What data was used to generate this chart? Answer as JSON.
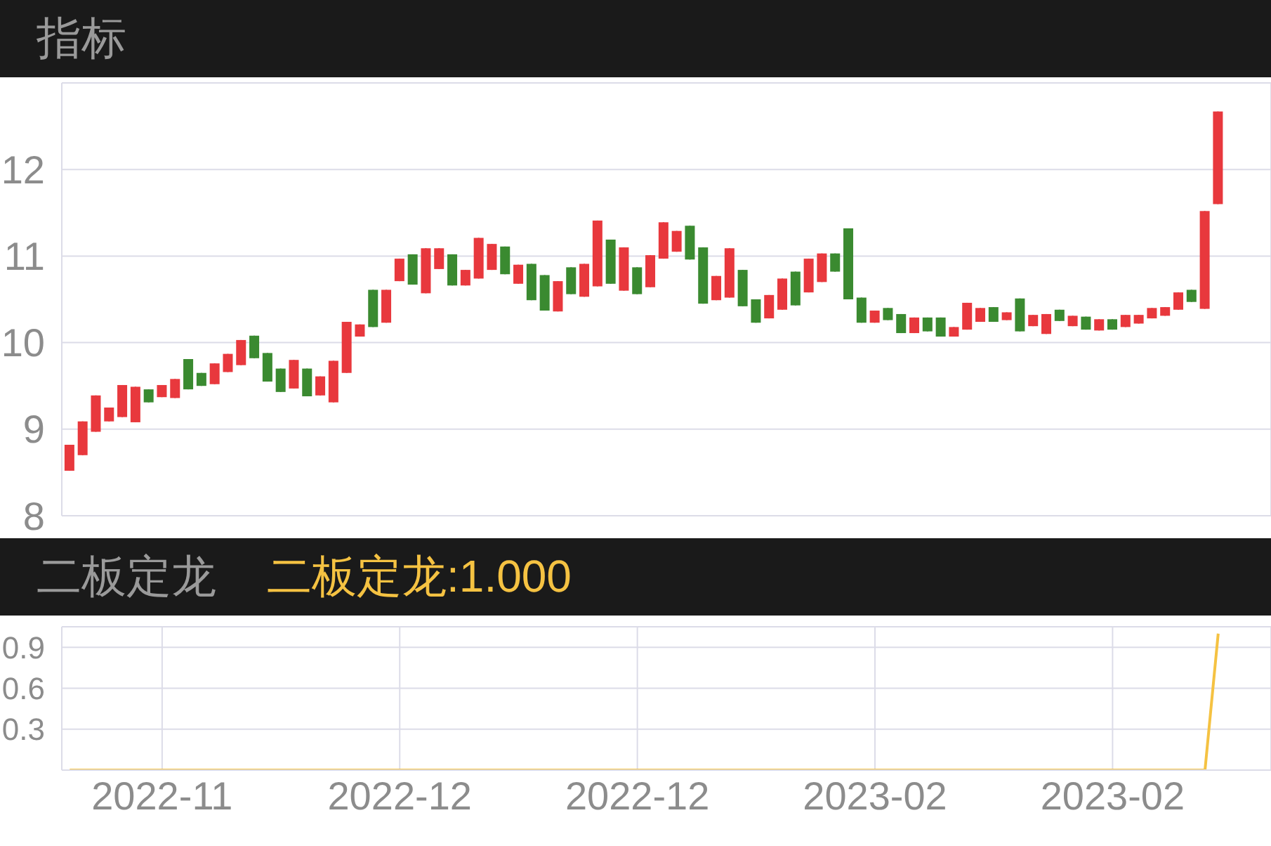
{
  "chart_data": [
    {
      "type": "candlestick",
      "title": "指标",
      "categories": [
        null,
        null,
        null,
        null,
        null,
        null,
        null,
        "2022-11",
        null,
        null,
        null,
        null,
        null,
        null,
        null,
        null,
        null,
        null,
        null,
        null,
        null,
        null,
        null,
        null,
        null,
        "2022-12",
        null,
        null,
        null,
        null,
        null,
        null,
        null,
        null,
        null,
        null,
        null,
        null,
        null,
        null,
        null,
        null,
        null,
        "2022-12",
        null,
        null,
        null,
        null,
        null,
        null,
        null,
        null,
        null,
        null,
        null,
        null,
        null,
        null,
        null,
        null,
        null,
        "2023-02",
        null,
        null,
        null,
        null,
        null,
        null,
        null,
        null,
        null,
        null,
        null,
        null,
        null,
        null,
        null,
        null,
        null,
        "2023-02",
        null,
        null,
        null,
        null,
        null,
        null,
        null,
        null
      ],
      "ohlc": [
        [
          8.52,
          8.82,
          8.52,
          8.82
        ],
        [
          8.7,
          9.09,
          8.7,
          9.09
        ],
        [
          8.97,
          9.39,
          8.97,
          9.39
        ],
        [
          9.09,
          9.25,
          9.09,
          9.25
        ],
        [
          9.14,
          9.51,
          9.14,
          9.51
        ],
        [
          9.08,
          9.49,
          9.08,
          9.49
        ],
        [
          9.46,
          9.46,
          9.31,
          9.31
        ],
        [
          9.37,
          9.51,
          9.37,
          9.51
        ],
        [
          9.36,
          9.58,
          9.36,
          9.58
        ],
        [
          9.81,
          9.81,
          9.46,
          9.46
        ],
        [
          9.65,
          9.65,
          9.5,
          9.5
        ],
        [
          9.52,
          9.76,
          9.52,
          9.76
        ],
        [
          9.66,
          9.87,
          9.66,
          9.87
        ],
        [
          9.74,
          10.03,
          9.74,
          10.03
        ],
        [
          10.08,
          10.08,
          9.82,
          9.82
        ],
        [
          9.88,
          9.88,
          9.55,
          9.55
        ],
        [
          9.7,
          9.7,
          9.43,
          9.43
        ],
        [
          9.47,
          9.8,
          9.47,
          9.8
        ],
        [
          9.7,
          9.7,
          9.38,
          9.38
        ],
        [
          9.39,
          9.61,
          9.39,
          9.61
        ],
        [
          9.31,
          9.79,
          9.31,
          9.79
        ],
        [
          9.65,
          10.24,
          9.65,
          10.24
        ],
        [
          10.07,
          10.21,
          10.07,
          10.21
        ],
        [
          10.61,
          10.61,
          10.18,
          10.18
        ],
        [
          10.23,
          10.61,
          10.23,
          10.61
        ],
        [
          10.71,
          10.97,
          10.71,
          10.97
        ],
        [
          11.02,
          11.02,
          10.67,
          10.67
        ],
        [
          10.57,
          11.09,
          10.57,
          11.09
        ],
        [
          10.85,
          11.09,
          10.85,
          11.09
        ],
        [
          11.02,
          11.02,
          10.66,
          10.66
        ],
        [
          10.66,
          10.84,
          10.66,
          10.84
        ],
        [
          10.74,
          11.21,
          10.74,
          11.21
        ],
        [
          10.84,
          11.14,
          10.84,
          11.14
        ],
        [
          11.11,
          11.11,
          10.79,
          10.79
        ],
        [
          10.68,
          10.9,
          10.68,
          10.9
        ],
        [
          10.91,
          10.91,
          10.49,
          10.49
        ],
        [
          10.78,
          10.78,
          10.37,
          10.37
        ],
        [
          10.36,
          10.71,
          10.36,
          10.71
        ],
        [
          10.87,
          10.87,
          10.56,
          10.56
        ],
        [
          10.53,
          10.91,
          10.53,
          10.91
        ],
        [
          10.65,
          11.41,
          10.65,
          11.41
        ],
        [
          11.19,
          11.19,
          10.68,
          10.68
        ],
        [
          10.6,
          11.1,
          10.6,
          11.1
        ],
        [
          10.87,
          10.87,
          10.56,
          10.56
        ],
        [
          10.64,
          11.01,
          10.64,
          11.01
        ],
        [
          10.97,
          11.39,
          10.97,
          11.39
        ],
        [
          11.05,
          11.29,
          11.05,
          11.29
        ],
        [
          11.35,
          11.35,
          10.96,
          10.96
        ],
        [
          11.1,
          11.1,
          10.45,
          10.45
        ],
        [
          10.49,
          10.77,
          10.49,
          10.77
        ],
        [
          10.52,
          11.09,
          10.52,
          11.09
        ],
        [
          10.84,
          10.84,
          10.42,
          10.42
        ],
        [
          10.5,
          10.5,
          10.23,
          10.23
        ],
        [
          10.28,
          10.55,
          10.28,
          10.55
        ],
        [
          10.38,
          10.74,
          10.38,
          10.74
        ],
        [
          10.82,
          10.82,
          10.43,
          10.43
        ],
        [
          10.58,
          10.97,
          10.58,
          10.97
        ],
        [
          10.7,
          11.03,
          10.7,
          11.03
        ],
        [
          11.03,
          11.03,
          10.82,
          10.82
        ],
        [
          11.32,
          11.32,
          10.5,
          10.5
        ],
        [
          10.52,
          10.52,
          10.23,
          10.23
        ],
        [
          10.23,
          10.37,
          10.23,
          10.37
        ],
        [
          10.4,
          10.4,
          10.26,
          10.26
        ],
        [
          10.33,
          10.33,
          10.11,
          10.11
        ],
        [
          10.11,
          10.29,
          10.11,
          10.29
        ],
        [
          10.29,
          10.29,
          10.13,
          10.13
        ],
        [
          10.29,
          10.29,
          10.07,
          10.07
        ],
        [
          10.07,
          10.18,
          10.07,
          10.18
        ],
        [
          10.15,
          10.46,
          10.15,
          10.46
        ],
        [
          10.24,
          10.4,
          10.24,
          10.4
        ],
        [
          10.41,
          10.41,
          10.24,
          10.24
        ],
        [
          10.26,
          10.35,
          10.26,
          10.35
        ],
        [
          10.51,
          10.51,
          10.13,
          10.13
        ],
        [
          10.19,
          10.32,
          10.19,
          10.32
        ],
        [
          10.1,
          10.33,
          10.1,
          10.33
        ],
        [
          10.38,
          10.38,
          10.25,
          10.25
        ],
        [
          10.19,
          10.31,
          10.19,
          10.31
        ],
        [
          10.3,
          10.3,
          10.15,
          10.15
        ],
        [
          10.14,
          10.27,
          10.14,
          10.27
        ],
        [
          10.27,
          10.27,
          10.15,
          10.15
        ],
        [
          10.18,
          10.32,
          10.18,
          10.32
        ],
        [
          10.22,
          10.32,
          10.22,
          10.32
        ],
        [
          10.28,
          10.4,
          10.28,
          10.4
        ],
        [
          10.31,
          10.41,
          10.31,
          10.41
        ],
        [
          10.38,
          10.58,
          10.38,
          10.58
        ],
        [
          10.61,
          10.61,
          10.47,
          10.47
        ],
        [
          10.39,
          11.52,
          10.39,
          11.52
        ],
        [
          11.6,
          12.67,
          11.6,
          12.67
        ]
      ],
      "colors": [
        "#e8383d",
        "#e8383d",
        "#e8383d",
        "#e8383d",
        "#e8383d",
        "#e8383d",
        "#3a8a30",
        "#e8383d",
        "#e8383d",
        "#3a8a30",
        "#3a8a30",
        "#e8383d",
        "#e8383d",
        "#e8383d",
        "#3a8a30",
        "#3a8a30",
        "#3a8a30",
        "#e8383d",
        "#3a8a30",
        "#e8383d",
        "#e8383d",
        "#e8383d",
        "#e8383d",
        "#3a8a30",
        "#e8383d",
        "#e8383d",
        "#3a8a30",
        "#e8383d",
        "#e8383d",
        "#3a8a30",
        "#e8383d",
        "#e8383d",
        "#e8383d",
        "#3a8a30",
        "#e8383d",
        "#3a8a30",
        "#3a8a30",
        "#e8383d",
        "#3a8a30",
        "#e8383d",
        "#e8383d",
        "#3a8a30",
        "#e8383d",
        "#3a8a30",
        "#e8383d",
        "#e8383d",
        "#e8383d",
        "#3a8a30",
        "#3a8a30",
        "#e8383d",
        "#e8383d",
        "#3a8a30",
        "#3a8a30",
        "#e8383d",
        "#e8383d",
        "#3a8a30",
        "#e8383d",
        "#e8383d",
        "#3a8a30",
        "#3a8a30",
        "#3a8a30",
        "#e8383d",
        "#3a8a30",
        "#3a8a30",
        "#e8383d",
        "#3a8a30",
        "#3a8a30",
        "#e8383d",
        "#e8383d",
        "#e8383d",
        "#3a8a30",
        "#e8383d",
        "#3a8a30",
        "#e8383d",
        "#e8383d",
        "#3a8a30",
        "#e8383d",
        "#3a8a30",
        "#e8383d",
        "#3a8a30",
        "#e8383d",
        "#e8383d",
        "#e8383d",
        "#e8383d",
        "#e8383d",
        "#3a8a30",
        "#e8383d",
        "#e8383d"
      ],
      "ylim": [
        8,
        13
      ],
      "yticks": [
        8,
        9,
        10,
        11,
        12
      ],
      "grid": true,
      "tick_labels": "y"
    },
    {
      "type": "line",
      "title": "二板定龙",
      "categories": [
        null,
        null,
        null,
        null,
        null,
        null,
        null,
        "2022-11",
        null,
        null,
        null,
        null,
        null,
        null,
        null,
        null,
        null,
        null,
        null,
        null,
        null,
        null,
        null,
        null,
        null,
        "2022-12",
        null,
        null,
        null,
        null,
        null,
        null,
        null,
        null,
        null,
        null,
        null,
        null,
        null,
        null,
        null,
        null,
        null,
        "2022-12",
        null,
        null,
        null,
        null,
        null,
        null,
        null,
        null,
        null,
        null,
        null,
        null,
        null,
        null,
        null,
        null,
        null,
        "2023-02",
        null,
        null,
        null,
        null,
        null,
        null,
        null,
        null,
        null,
        null,
        null,
        null,
        null,
        null,
        null,
        null,
        null,
        "2023-02",
        null,
        null,
        null,
        null,
        null,
        null,
        null,
        null
      ],
      "series": [
        {
          "name": "二板定龙:1.000",
          "color": "#f5c242",
          "values": [
            0,
            0,
            0,
            0,
            0,
            0,
            0,
            0,
            0,
            0,
            0,
            0,
            0,
            0,
            0,
            0,
            0,
            0,
            0,
            0,
            0,
            0,
            0,
            0,
            0,
            0,
            0,
            0,
            0,
            0,
            0,
            0,
            0,
            0,
            0,
            0,
            0,
            0,
            0,
            0,
            0,
            0,
            0,
            0,
            0,
            0,
            0,
            0,
            0,
            0,
            0,
            0,
            0,
            0,
            0,
            0,
            0,
            0,
            0,
            0,
            0,
            0,
            0,
            0,
            0,
            0,
            0,
            0,
            0,
            0,
            0,
            0,
            0,
            0,
            0,
            0,
            0,
            0,
            0,
            0,
            0,
            0,
            0,
            0,
            0,
            0,
            0,
            1
          ]
        }
      ],
      "ylim": [
        0,
        1.05
      ],
      "yticks": [
        0.3,
        0.6,
        0.9
      ],
      "grid": true,
      "legend": "top left",
      "marker": "none"
    }
  ]
}
